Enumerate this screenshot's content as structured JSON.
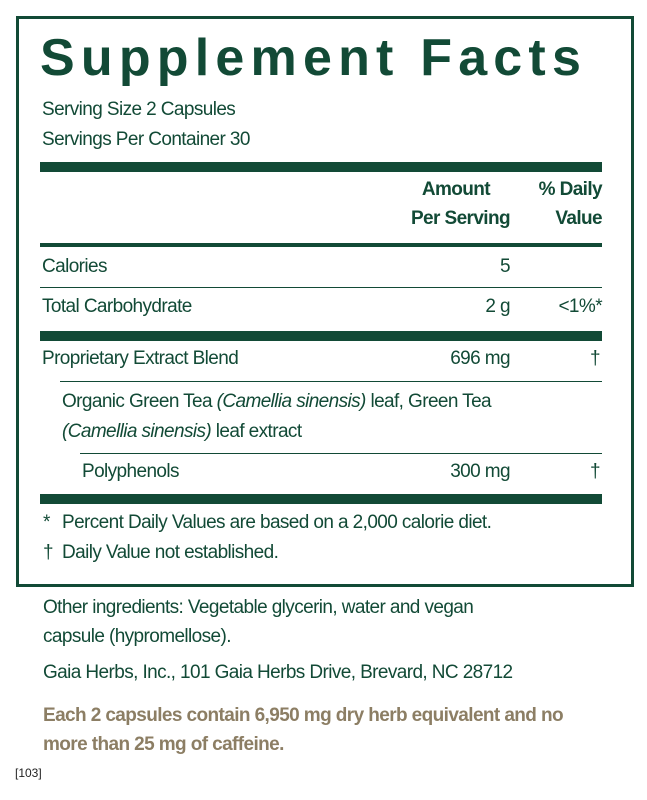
{
  "title": "Supplement Facts",
  "serving_size": "Serving Size 2 Capsules",
  "servings_per_container": "Servings Per Container 30",
  "headers": {
    "amount_1": "Amount",
    "amount_2": "Per Serving",
    "dv_1": "% Daily",
    "dv_2": "Value"
  },
  "rows": [
    {
      "name": "Calories",
      "amount": "5",
      "dv": ""
    },
    {
      "name": "Total Carbohydrate",
      "amount": "2 g",
      "dv": "<1%*"
    },
    {
      "name": "Proprietary Extract Blend",
      "amount": "696 mg",
      "dv": "†"
    },
    {
      "name": "Polyphenols",
      "amount": "300 mg",
      "dv": "†"
    }
  ],
  "blend_ingredients": {
    "a": "Organic Green Tea ",
    "a_i": "(Camellia sinensis)",
    "b": " leaf, Green Tea",
    "c_i": "(Camellia sinensis)",
    "d": " leaf extract"
  },
  "footnotes": [
    {
      "mark": "*",
      "text": "Percent Daily Values are based on a 2,000 calorie diet."
    },
    {
      "mark": "†",
      "text": "Daily Value not established."
    }
  ],
  "other_ingredients": [
    "Other ingredients: Vegetable glycerin, water and vegan",
    "capsule (hypromellose)."
  ],
  "address": "Gaia Herbs, Inc., 101 Gaia Herbs Drive, Brevard, NC 28712",
  "herb_note": [
    "Each 2 capsules contain 6,950 mg dry herb equivalent and no",
    "more than 25 mg of caffeine."
  ],
  "code": "[103]",
  "colors": {
    "green": "#124a36",
    "tan": "#8c7e64"
  }
}
